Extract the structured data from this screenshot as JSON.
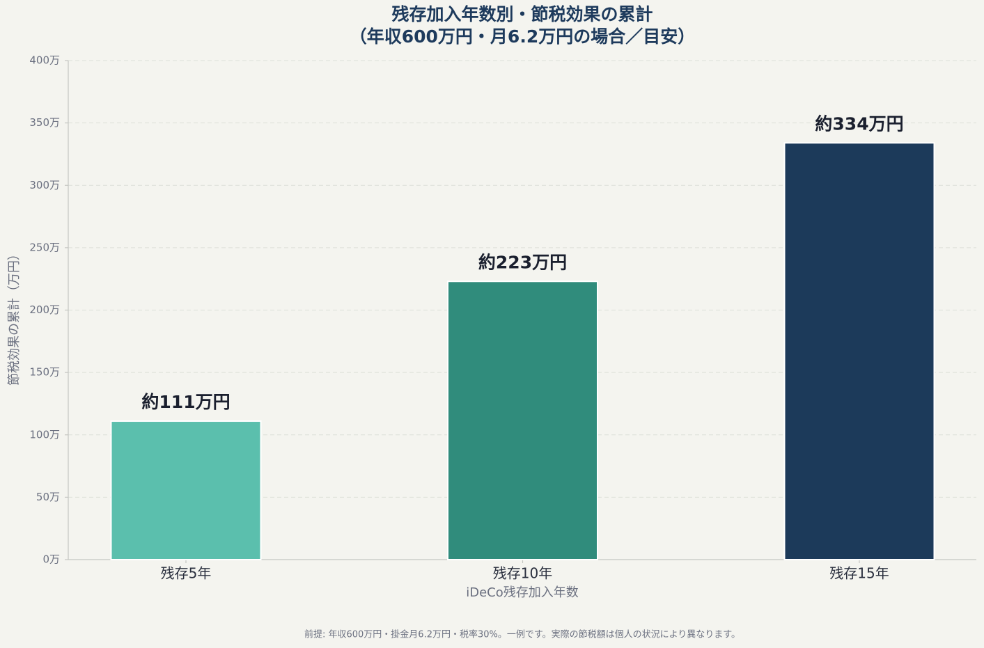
{
  "chart_data": {
    "type": "bar",
    "title": [
      "残存加入年数別・節税効果の累計",
      "（年収600万円・月6.2万円の場合／目安）"
    ],
    "x_label": "iDeCo残存加入年数",
    "y_label": "節税効果の累計（万円）",
    "categories": [
      "残存5年",
      "残存10年",
      "残存15年"
    ],
    "values": [
      111,
      223,
      334
    ],
    "value_labels": [
      "約111万円",
      "約223万円",
      "約334万円"
    ],
    "colors": [
      "#5bbfad",
      "#308c7c",
      "#1c3a5a"
    ],
    "ylim": [
      0,
      400
    ],
    "yticks": [
      {
        "value": 0,
        "label": "0万"
      },
      {
        "value": 50,
        "label": "50万"
      },
      {
        "value": 100,
        "label": "100万"
      },
      {
        "value": 150,
        "label": "150万"
      },
      {
        "value": 200,
        "label": "200万"
      },
      {
        "value": 250,
        "label": "250万"
      },
      {
        "value": 300,
        "label": "300万"
      },
      {
        "value": 350,
        "label": "350万"
      },
      {
        "value": 400,
        "label": "400万"
      }
    ],
    "grid": true,
    "note": "前提: 年収600万円・掛金月6.2万円・税率30%。一例です。実際の節税額は個人の状況により異なります。"
  }
}
